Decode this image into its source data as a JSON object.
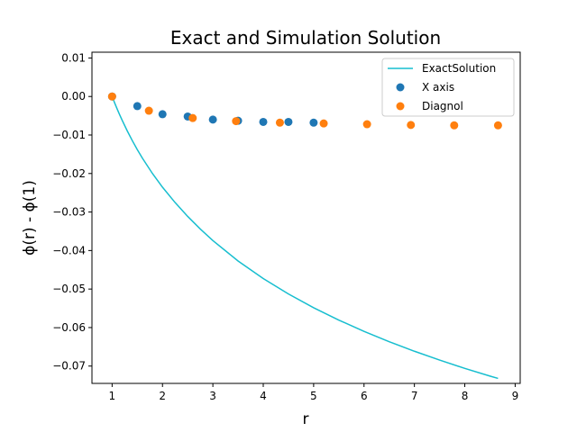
{
  "chart_data": {
    "type": "line",
    "title": "Exact and Simulation Solution",
    "xlabel": "r",
    "ylabel": "ϕ(r) - ϕ(1)",
    "xlim": [
      0.6,
      9.1
    ],
    "ylim": [
      -0.0745,
      0.0115
    ],
    "x_ticks": [
      1,
      2,
      3,
      4,
      5,
      6,
      7,
      8,
      9
    ],
    "y_ticks": [
      0.01,
      0.0,
      -0.01,
      -0.02,
      -0.03,
      -0.04,
      -0.05,
      -0.06,
      -0.07
    ],
    "y_tick_labels": [
      "0.01",
      "0.00",
      "−0.01",
      "−0.02",
      "−0.03",
      "−0.04",
      "−0.05",
      "−0.06",
      "−0.07"
    ],
    "grid": false,
    "legend_position": "top-right",
    "series": [
      {
        "name": "ExactSolution",
        "kind": "line",
        "color": "#17becf",
        "x": [
          1.0,
          1.05,
          1.1,
          1.15,
          1.2,
          1.3,
          1.4,
          1.5,
          1.6,
          1.8,
          2.0,
          2.25,
          2.5,
          2.75,
          3.0,
          3.5,
          4.0,
          4.5,
          5.0,
          5.5,
          6.0,
          6.5,
          7.0,
          7.5,
          8.0,
          8.5,
          8.66
        ],
        "y": [
          0.0,
          -0.00166,
          -0.00324,
          -0.00475,
          -0.0062,
          -0.00892,
          -0.01145,
          -0.0138,
          -0.01599,
          -0.01999,
          -0.02356,
          -0.02754,
          -0.03114,
          -0.03441,
          -0.03741,
          -0.04271,
          -0.04728,
          -0.05128,
          -0.05486,
          -0.05806,
          -0.06098,
          -0.06367,
          -0.06615,
          -0.06844,
          -0.0706,
          -0.0726,
          -0.0732
        ]
      },
      {
        "name": "X axis",
        "kind": "scatter",
        "color": "#1f77b4",
        "x": [
          1.0,
          1.5,
          2.0,
          2.5,
          3.0,
          3.5,
          4.0,
          4.5,
          5.0
        ],
        "y": [
          0.0,
          -0.0025,
          -0.0046,
          -0.0052,
          -0.006,
          -0.0063,
          -0.0066,
          -0.0066,
          -0.0068
        ]
      },
      {
        "name": "Diagnol",
        "kind": "scatter",
        "color": "#ff7f0e",
        "x": [
          1.0,
          1.73,
          2.6,
          3.46,
          4.33,
          5.2,
          6.06,
          6.93,
          7.79,
          8.66
        ],
        "y": [
          0.0,
          -0.0037,
          -0.0056,
          -0.0064,
          -0.0068,
          -0.007,
          -0.0072,
          -0.0074,
          -0.0075,
          -0.0075
        ]
      }
    ]
  }
}
